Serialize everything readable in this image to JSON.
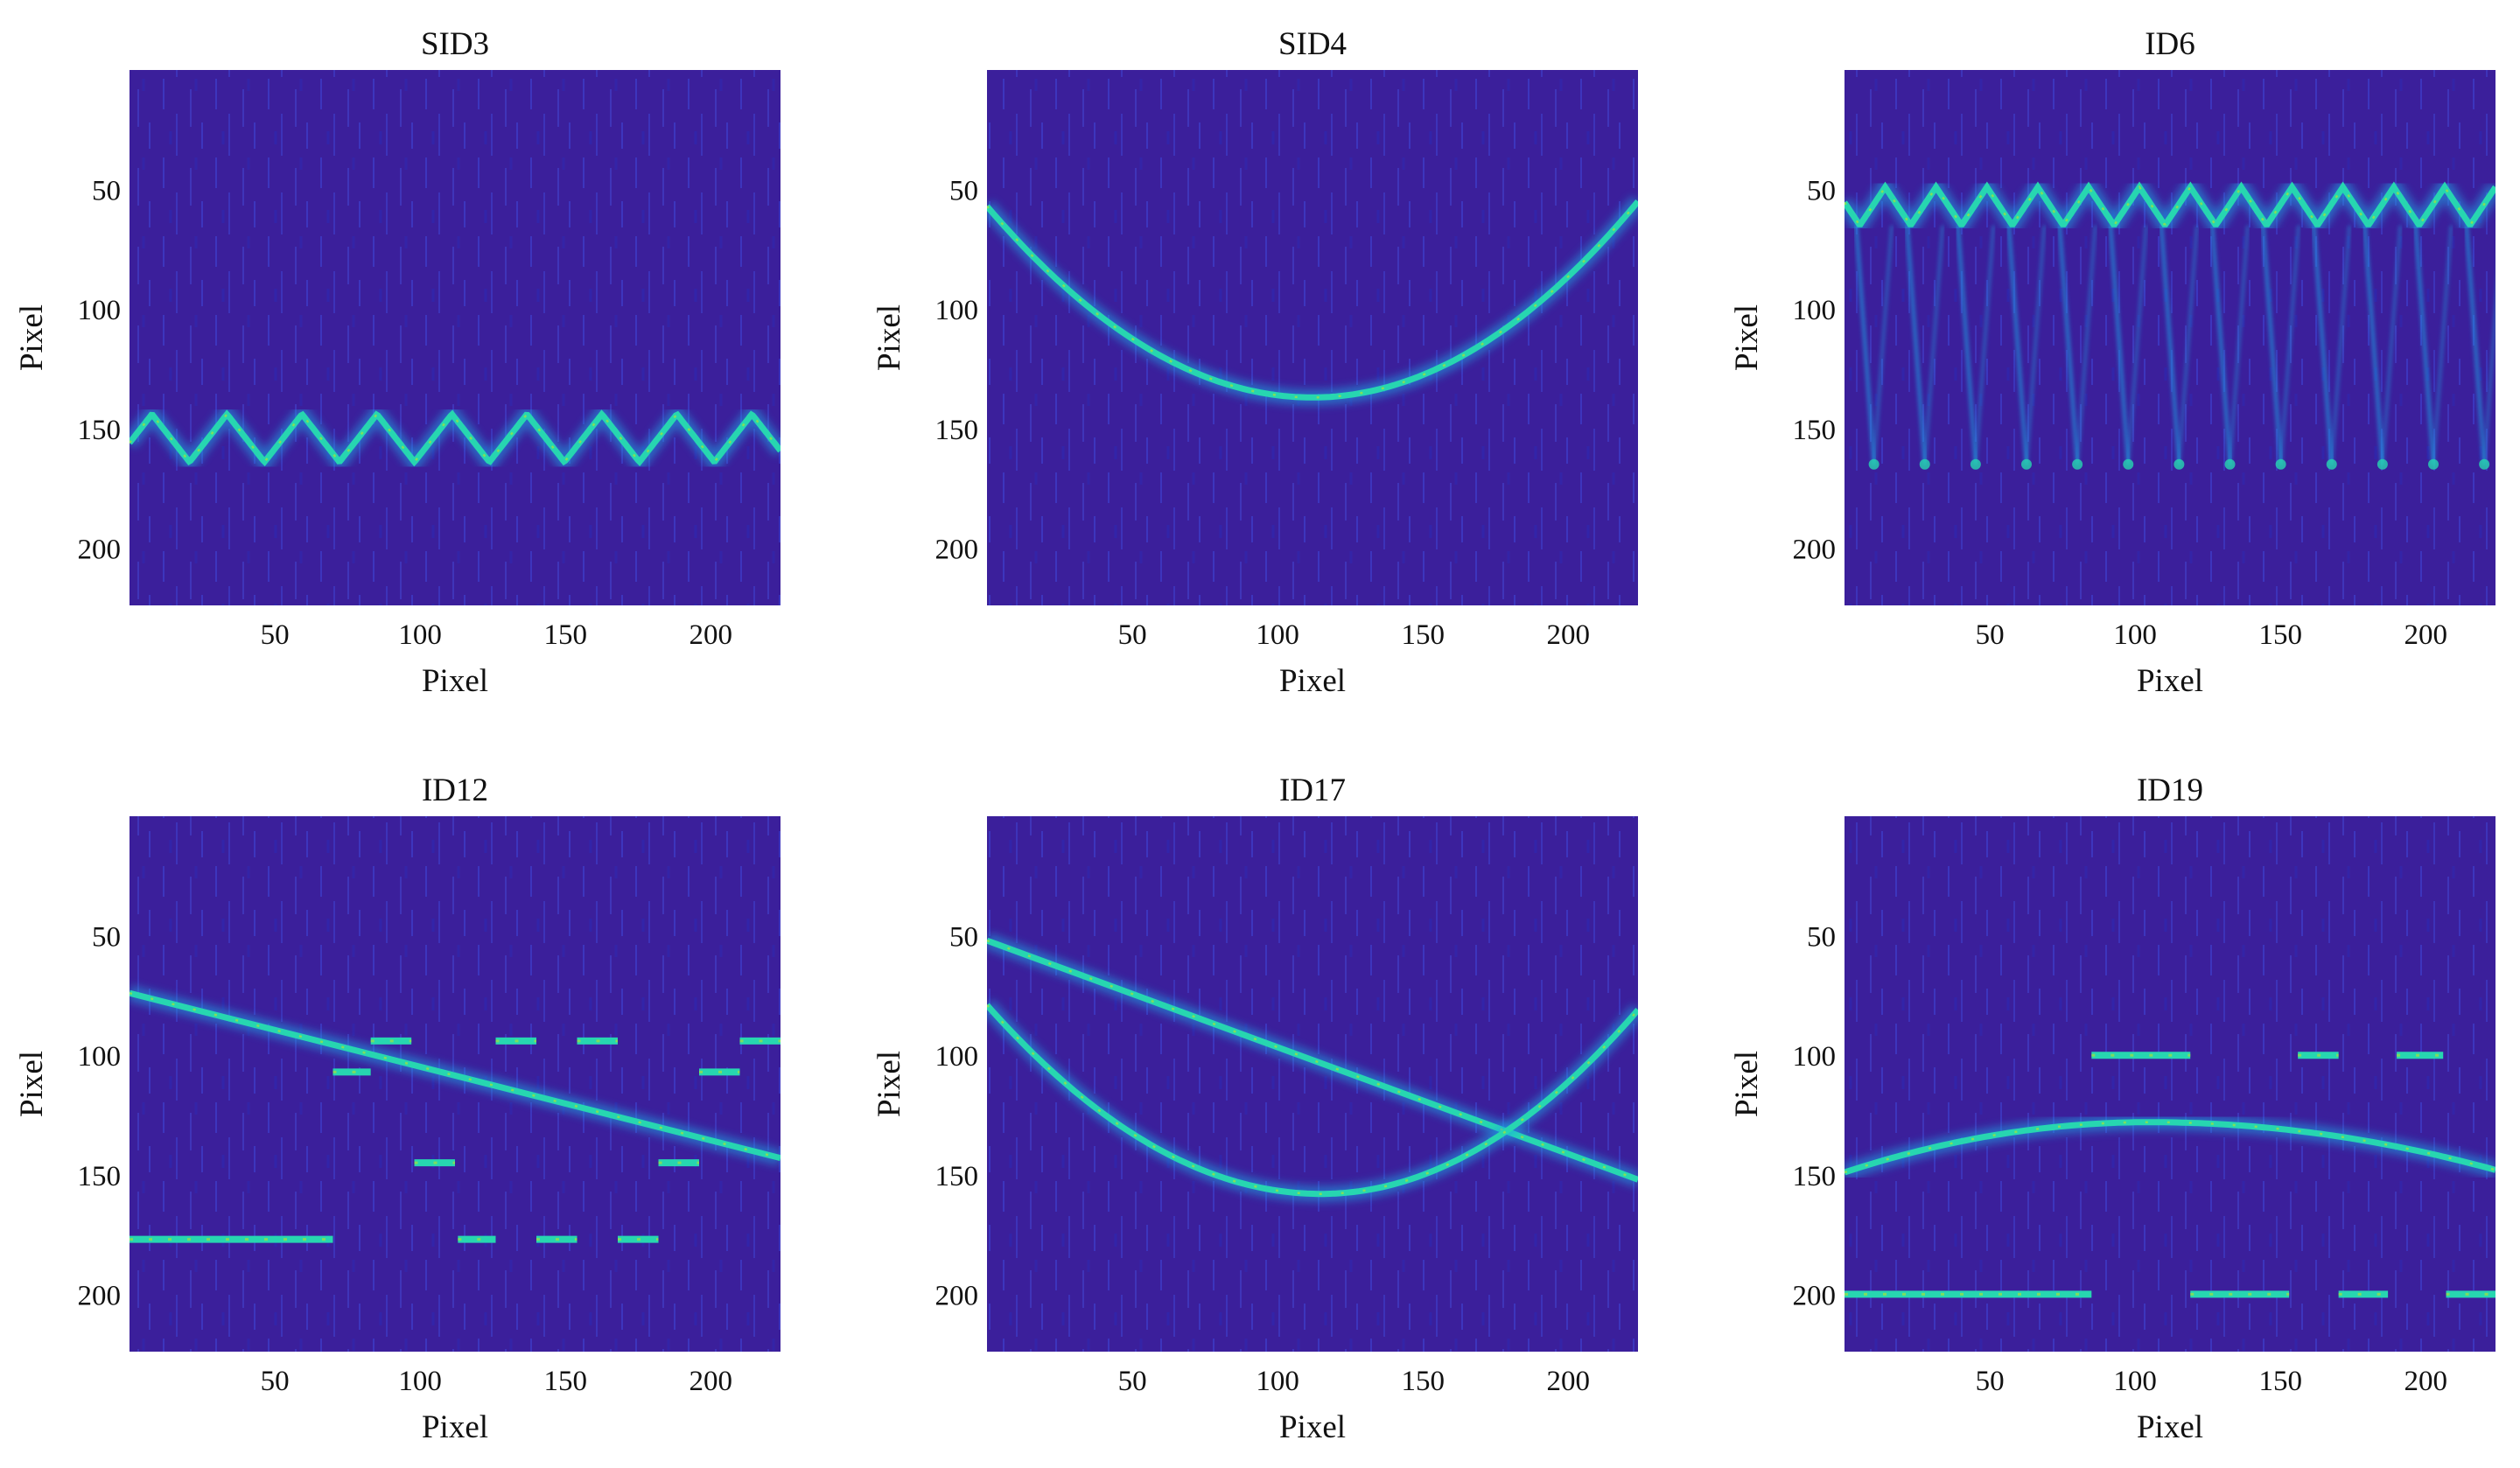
{
  "figure": {
    "type": "spectrogram-panels",
    "colormap": [
      "#3b1f9b",
      "#2f3fd9",
      "#2a63f0",
      "#1fa7e6",
      "#27d6b0",
      "#8ce053",
      "#e7e31a"
    ]
  },
  "chart_data": [
    {
      "type": "heatmap",
      "title": "SID3",
      "xlabel": "Pixel",
      "ylabel": "Pixel",
      "xlim": [
        0,
        224
      ],
      "ylim": [
        224,
        0
      ],
      "xticks": [
        50,
        100,
        150,
        200
      ],
      "yticks": [
        50,
        100,
        150,
        200
      ],
      "curves": [
        {
          "kind": "triangle",
          "center": 154,
          "amplitude": 10,
          "period": 25.8,
          "phase": -0.3,
          "x": [
            0,
            224
          ]
        }
      ],
      "segments": []
    },
    {
      "type": "heatmap",
      "title": "SID4",
      "xlabel": "Pixel",
      "ylabel": "Pixel",
      "xlim": [
        0,
        224
      ],
      "ylim": [
        224,
        0
      ],
      "xticks": [
        50,
        100,
        150,
        200
      ],
      "yticks": [
        50,
        100,
        150,
        200
      ],
      "curves": [
        {
          "kind": "parabola",
          "vertex_x": 112,
          "vertex_y": 137,
          "edge_y": [
            57,
            55
          ],
          "x": [
            0,
            224
          ]
        }
      ],
      "segments": []
    },
    {
      "type": "heatmap",
      "title": "ID6",
      "xlabel": "Pixel",
      "ylabel": "Pixel",
      "xlim": [
        0,
        224
      ],
      "ylim": [
        224,
        0
      ],
      "xticks": [
        50,
        100,
        150,
        200
      ],
      "yticks": [
        50,
        100,
        150,
        200
      ],
      "curves": [
        {
          "kind": "triangle",
          "center": 57,
          "amplitude": 8,
          "period": 17.5,
          "phase": 0.2,
          "x": [
            0,
            224
          ]
        }
      ],
      "spikes": {
        "period": 17.5,
        "from": 65,
        "to": 165
      },
      "segments": []
    },
    {
      "type": "heatmap",
      "title": "ID12",
      "xlabel": "Pixel",
      "ylabel": "Pixel",
      "xlim": [
        0,
        224
      ],
      "ylim": [
        224,
        0
      ],
      "xticks": [
        50,
        100,
        150,
        200
      ],
      "yticks": [
        50,
        100,
        150,
        200
      ],
      "curves": [
        {
          "kind": "line",
          "points": [
            [
              0,
              74
            ],
            [
              224,
              143
            ]
          ]
        }
      ],
      "segments": [
        {
          "x": [
            0,
            70
          ],
          "y": 177
        },
        {
          "x": 70,
          "x2": 83,
          "y": 107
        },
        {
          "x": 83,
          "x2": 97,
          "y": 94
        },
        {
          "x": 98,
          "x2": 112,
          "y": 145
        },
        {
          "x": 113,
          "x2": 126,
          "y": 177
        },
        {
          "x": 126,
          "x2": 140,
          "y": 94
        },
        {
          "x": 140,
          "x2": 154,
          "y": 177
        },
        {
          "x": 154,
          "x2": 168,
          "y": 94
        },
        {
          "x": 168,
          "x2": 182,
          "y": 177
        },
        {
          "x": 182,
          "x2": 196,
          "y": 145
        },
        {
          "x": 196,
          "x2": 210,
          "y": 107
        },
        {
          "x": 210,
          "x2": 224,
          "y": 94
        }
      ]
    },
    {
      "type": "heatmap",
      "title": "ID17",
      "xlabel": "Pixel",
      "ylabel": "Pixel",
      "xlim": [
        0,
        224
      ],
      "ylim": [
        224,
        0
      ],
      "xticks": [
        50,
        100,
        150,
        200
      ],
      "yticks": [
        50,
        100,
        150,
        200
      ],
      "curves": [
        {
          "kind": "line",
          "points": [
            [
              0,
              52
            ],
            [
              224,
              152
            ]
          ]
        },
        {
          "kind": "parabola",
          "vertex_x": 115,
          "vertex_y": 158,
          "edge_y": [
            79,
            81
          ],
          "x": [
            0,
            224
          ]
        }
      ],
      "segments": []
    },
    {
      "type": "heatmap",
      "title": "ID19",
      "xlabel": "Pixel",
      "ylabel": "Pixel",
      "xlim": [
        0,
        224
      ],
      "ylim": [
        224,
        0
      ],
      "xticks": [
        50,
        100,
        150,
        200
      ],
      "yticks": [
        50,
        100,
        150,
        200
      ],
      "curves": [
        {
          "kind": "parabola",
          "vertex_x": 105,
          "vertex_y": 128,
          "edge_y": [
            149,
            148
          ],
          "x": [
            0,
            224
          ]
        }
      ],
      "segments": [
        {
          "x": 0,
          "x2": 85,
          "y": 200
        },
        {
          "x": 85,
          "x2": 119,
          "y": 100
        },
        {
          "x": 119,
          "x2": 153,
          "y": 200
        },
        {
          "x": 156,
          "x2": 170,
          "y": 100
        },
        {
          "x": 170,
          "x2": 187,
          "y": 200
        },
        {
          "x": 190,
          "x2": 206,
          "y": 100
        },
        {
          "x": 207,
          "x2": 224,
          "y": 200
        }
      ]
    }
  ]
}
